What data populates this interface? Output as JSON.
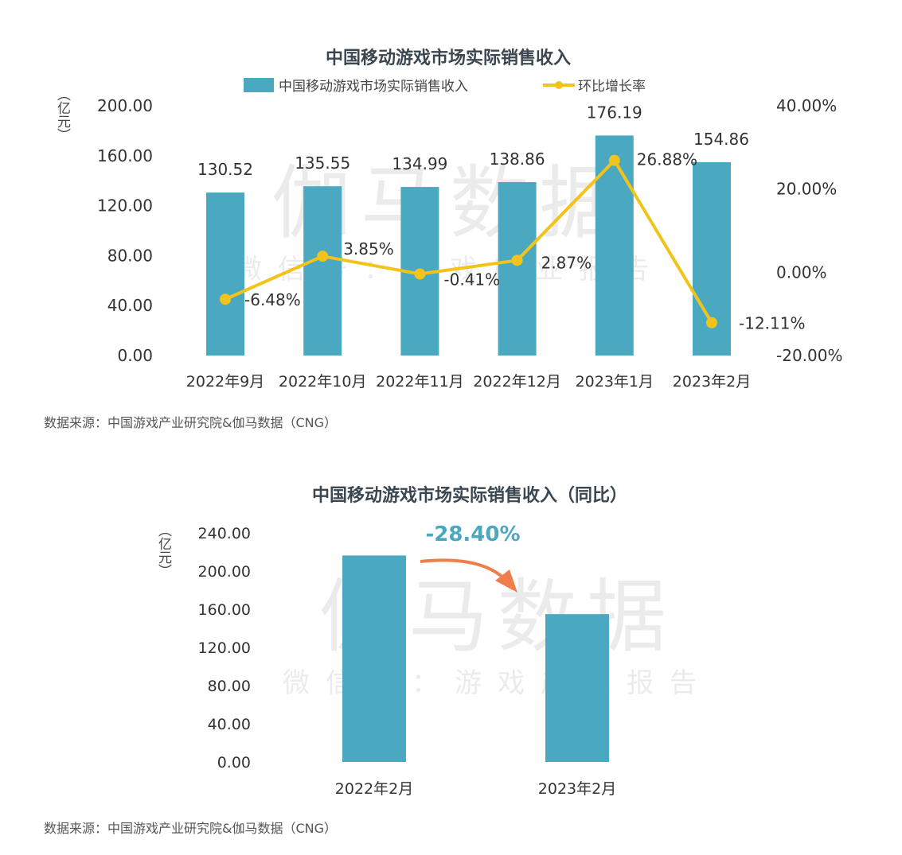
{
  "charts": [
    {
      "title": "中国移动游戏市场实际销售收入",
      "source": "数据来源：中国游戏产业研究院&伽马数据（CNG）",
      "watermark": [
        "伽马数据",
        "微信号：游戏产业报告"
      ],
      "unit_label": "（亿元）",
      "colors": {
        "bar": "#4aa9c1",
        "line": "#f2c31b"
      }
    },
    {
      "title": "中国移动游戏市场实际销售收入（同比）",
      "source": "数据来源：中国游戏产业研究院&伽马数据（CNG）",
      "watermark": [
        "伽马数据",
        "微信号：游戏产业报告"
      ],
      "unit_label": "（亿元）",
      "change_label": "-28.40%",
      "colors": {
        "bar": "#4aa9c1",
        "change": "#4aa9c1",
        "arrow": "#ef7e4a"
      }
    }
  ],
  "chart_data": [
    {
      "type": "bar",
      "categories": [
        "2022年9月",
        "2022年10月",
        "2022年11月",
        "2022年12月",
        "2023年1月",
        "2023年2月"
      ],
      "series": [
        {
          "name": "中国移动游戏市场实际销售收入",
          "type": "bar",
          "axis": "left",
          "values": [
            130.52,
            135.55,
            134.99,
            138.86,
            176.19,
            154.86
          ],
          "labels": [
            "130.52",
            "135.55",
            "134.99",
            "138.86",
            "176.19",
            "154.86"
          ]
        },
        {
          "name": "环比增长率",
          "type": "line",
          "axis": "right",
          "values": [
            -6.48,
            3.85,
            -0.41,
            2.87,
            26.88,
            -12.11
          ],
          "labels": [
            "-6.48%",
            "3.85%",
            "-0.41%",
            "2.87%",
            "26.88%",
            "-12.11%"
          ]
        }
      ],
      "ylim": [
        0,
        200
      ],
      "yticks": [
        "0.00",
        "40.00",
        "80.00",
        "120.00",
        "160.00",
        "200.00"
      ],
      "y2lim": [
        -20,
        40
      ],
      "y2ticks": [
        "-20.00%",
        "0.00%",
        "20.00%",
        "40.00%"
      ],
      "legend": "top-center",
      "grid": false
    },
    {
      "type": "bar",
      "categories": [
        "2022年2月",
        "2023年2月"
      ],
      "values": [
        216.3,
        154.86
      ],
      "ylim": [
        0,
        240
      ],
      "yticks": [
        "0.00",
        "40.00",
        "80.00",
        "120.00",
        "160.00",
        "200.00",
        "240.00"
      ],
      "legend": "none",
      "grid": false
    }
  ]
}
